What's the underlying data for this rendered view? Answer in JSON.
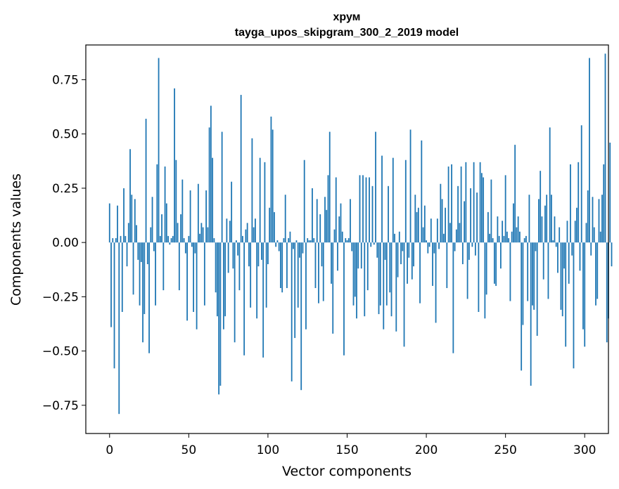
{
  "chart_data": {
    "type": "bar",
    "title": "хрум",
    "subtitle": "tayga_upos_skipgram_300_2_2019 model",
    "xlabel": "Vector components",
    "ylabel": "Components values",
    "xlim": [
      -15,
      315
    ],
    "ylim": [
      -0.88,
      0.91
    ],
    "xticks": [
      0,
      50,
      100,
      150,
      200,
      250,
      300
    ],
    "yticks": [
      -0.75,
      -0.5,
      -0.25,
      0.0,
      0.25,
      0.5,
      0.75
    ],
    "xtick_labels": [
      "0",
      "50",
      "100",
      "150",
      "200",
      "250",
      "300"
    ],
    "ytick_labels": [
      "−0.75",
      "−0.50",
      "−0.25",
      "0.00",
      "0.25",
      "0.50",
      "0.75"
    ],
    "bar_color": "#1f77b4",
    "grid": false,
    "values": [
      0.18,
      -0.39,
      0.02,
      -0.58,
      0.02,
      0.17,
      -0.79,
      0.03,
      -0.32,
      0.25,
      0.03,
      -0.11,
      0.09,
      0.43,
      0.22,
      -0.24,
      0.2,
      0.08,
      -0.08,
      -0.29,
      -0.09,
      -0.46,
      -0.33,
      0.57,
      -0.1,
      -0.51,
      0.07,
      0.21,
      -0.04,
      -0.29,
      0.36,
      0.85,
      0.03,
      0.13,
      -0.22,
      0.35,
      0.18,
      0.03,
      -0.01,
      0.02,
      0.03,
      0.71,
      0.38,
      0.09,
      -0.22,
      0.13,
      0.29,
      0.02,
      -0.05,
      -0.36,
      0.03,
      0.24,
      -0.02,
      -0.32,
      -0.05,
      -0.4,
      0.27,
      0.04,
      0.09,
      0.07,
      -0.29,
      0.24,
      0.07,
      0.53,
      0.63,
      0.39,
      0.02,
      -0.23,
      -0.34,
      -0.7,
      -0.66,
      0.51,
      -0.4,
      -0.34,
      0.11,
      -0.14,
      0.1,
      0.28,
      -0.12,
      -0.46,
      0.01,
      -0.06,
      -0.22,
      0.68,
      0.03,
      -0.52,
      0.06,
      0.09,
      -0.11,
      -0.3,
      0.48,
      0.07,
      0.11,
      -0.35,
      -0.11,
      0.39,
      -0.08,
      -0.53,
      0.37,
      -0.3,
      -0.1,
      0.16,
      0.58,
      0.52,
      0.14,
      -0.02,
      0.01,
      -0.04,
      -0.21,
      -0.23,
      0.02,
      0.22,
      -0.21,
      0.02,
      0.05,
      -0.64,
      -0.03,
      -0.44,
      0.01,
      -0.3,
      -0.07,
      -0.68,
      -0.05,
      0.38,
      -0.4,
      0.02,
      0.01,
      0.01,
      0.25,
      0.02,
      -0.21,
      0.2,
      -0.28,
      0.13,
      -0.11,
      -0.27,
      0.21,
      0.15,
      0.31,
      0.51,
      -0.19,
      -0.42,
      0.06,
      0.3,
      -0.13,
      0.12,
      0.18,
      0.05,
      -0.52,
      0.02,
      0.01,
      0.02,
      0.2,
      -0.04,
      -0.29,
      -0.25,
      -0.35,
      -0.12,
      0.31,
      -0.12,
      0.31,
      -0.34,
      0.3,
      -0.22,
      0.3,
      -0.02,
      0.26,
      -0.01,
      0.51,
      -0.07,
      -0.33,
      -0.29,
      0.4,
      -0.4,
      -0.08,
      -0.29,
      0.26,
      -0.23,
      -0.34,
      0.39,
      0.04,
      -0.41,
      -0.16,
      0.05,
      -0.1,
      -0.04,
      -0.48,
      0.38,
      -0.19,
      -0.07,
      0.52,
      -0.17,
      -0.11,
      0.22,
      0.14,
      0.16,
      -0.28,
      0.47,
      0.07,
      0.17,
      0.01,
      -0.05,
      -0.02,
      0.11,
      -0.2,
      -0.05,
      -0.37,
      0.11,
      -0.03,
      0.27,
      0.2,
      0.04,
      0.16,
      -0.21,
      0.35,
      0.09,
      0.36,
      -0.51,
      -0.04,
      0.06,
      0.26,
      0.09,
      0.35,
      -0.1,
      0.19,
      0.37,
      -0.26,
      -0.08,
      0.25,
      -0.02,
      0.37,
      -0.06,
      0.23,
      -0.32,
      0.37,
      0.32,
      0.3,
      -0.35,
      -0.24,
      0.14,
      0.04,
      0.29,
      0.02,
      -0.19,
      -0.2,
      0.12,
      0.03,
      -0.12,
      0.1,
      0.03,
      0.31,
      0.05,
      0.02,
      -0.27,
      0.05,
      0.18,
      0.45,
      0.07,
      0.12,
      0.05,
      -0.59,
      -0.38,
      0.02,
      0.03,
      -0.27,
      0.22,
      -0.66,
      -0.29,
      -0.31,
      -0.04,
      -0.43,
      0.2,
      0.33,
      0.12,
      -0.17,
      0.17,
      0.22,
      -0.26,
      0.53,
      0.22,
      0.01,
      0.12,
      -0.02,
      -0.14,
      0.07,
      -0.31,
      -0.34,
      -0.12,
      -0.48,
      0.1,
      -0.19,
      0.36,
      -0.06,
      -0.58,
      0.1,
      0.16,
      0.37,
      -0.13,
      0.54,
      -0.4,
      -0.48,
      0.09,
      0.24,
      0.85,
      -0.06,
      0.21,
      0.07,
      -0.29,
      -0.26,
      0.2,
      0.05,
      0.22,
      0.36,
      0.87,
      -0.46,
      -0.35,
      0.46,
      -0.11
    ]
  }
}
